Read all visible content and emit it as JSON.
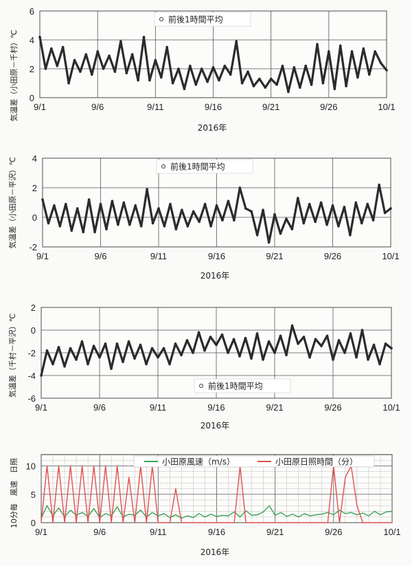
{
  "chart_data": [
    {
      "type": "line",
      "ylabel": "気温差（小田原－千村）℃",
      "xlabel": "2016年",
      "x_tick_labels": [
        "9/1",
        "9/6",
        "9/11",
        "9/16",
        "9/21",
        "9/26",
        "10/1"
      ],
      "y_tick_labels": [
        "0",
        "2",
        "4",
        "6"
      ],
      "ylim": [
        0,
        6
      ],
      "legend": "前後1時間平均",
      "legend_position": "top-center",
      "grid": true,
      "series": [
        {
          "name": "前後1時間平均",
          "color": "#2b2b2b",
          "x_days": [
            0,
            0.5,
            1,
            1.5,
            2,
            2.5,
            3,
            3.5,
            4,
            4.5,
            5,
            5.5,
            6,
            6.5,
            7,
            7.5,
            8,
            8.5,
            9,
            9.5,
            10,
            10.5,
            11,
            11.5,
            12,
            12.5,
            13,
            13.5,
            14,
            14.5,
            15,
            15.5,
            16,
            16.5,
            17,
            17.5,
            18,
            18.5,
            19,
            19.5,
            20,
            20.5,
            21,
            21.5,
            22,
            22.5,
            23,
            23.5,
            24,
            24.5,
            25,
            25.5,
            26,
            26.5,
            27,
            27.5,
            28,
            28.5,
            29,
            29.5,
            30
          ],
          "values": [
            4.2,
            2.0,
            3.4,
            2.2,
            3.5,
            1.0,
            2.6,
            1.8,
            3.0,
            1.6,
            3.2,
            2.0,
            2.9,
            1.8,
            3.9,
            1.7,
            3.0,
            1.2,
            4.2,
            1.2,
            2.6,
            1.4,
            3.5,
            1.0,
            2.0,
            0.6,
            2.2,
            0.9,
            2.0,
            1.1,
            2.1,
            1.2,
            2.2,
            1.6,
            3.9,
            1.0,
            1.8,
            0.8,
            1.3,
            0.7,
            1.3,
            0.9,
            2.2,
            0.4,
            2.1,
            0.7,
            2.2,
            0.9,
            3.7,
            1.0,
            3.2,
            0.6,
            3.6,
            0.8,
            3.2,
            1.4,
            3.4,
            1.6,
            3.2,
            2.4,
            1.9
          ]
        }
      ]
    },
    {
      "type": "line",
      "ylabel": "気温差（小田原－平沢）℃",
      "xlabel": "2016年",
      "x_tick_labels": [
        "9/1",
        "9/6",
        "9/11",
        "9/16",
        "9/21",
        "9/26",
        "10/1"
      ],
      "y_tick_labels": [
        "-2",
        "0",
        "2",
        "4"
      ],
      "ylim": [
        -2,
        4
      ],
      "legend": "前後1時間平均",
      "legend_position": "top-center",
      "grid": true,
      "series": [
        {
          "name": "前後1時間平均",
          "color": "#2b2b2b",
          "x_days": [
            0,
            0.5,
            1,
            1.5,
            2,
            2.5,
            3,
            3.5,
            4,
            4.5,
            5,
            5.5,
            6,
            6.5,
            7,
            7.5,
            8,
            8.5,
            9,
            9.5,
            10,
            10.5,
            11,
            11.5,
            12,
            12.5,
            13,
            13.5,
            14,
            14.5,
            15,
            15.5,
            16,
            16.5,
            17,
            17.5,
            18,
            18.5,
            19,
            19.5,
            20,
            20.5,
            21,
            21.5,
            22,
            22.5,
            23,
            23.5,
            24,
            24.5,
            25,
            25.5,
            26,
            26.5,
            27,
            27.5,
            28,
            28.5,
            29,
            29.5,
            30
          ],
          "values": [
            1.2,
            -0.4,
            0.8,
            -0.6,
            0.9,
            -0.9,
            0.6,
            -1.0,
            1.2,
            -1.0,
            0.9,
            -0.8,
            1.1,
            -0.5,
            1.0,
            -0.5,
            0.8,
            -0.6,
            1.9,
            -0.4,
            0.6,
            -0.6,
            0.9,
            -0.8,
            0.5,
            -0.6,
            0.4,
            -0.3,
            0.9,
            -0.6,
            0.8,
            -0.2,
            1.1,
            -0.2,
            2.0,
            0.6,
            0.4,
            -1.2,
            0.5,
            -1.7,
            0.2,
            -1.1,
            -0.1,
            -0.8,
            1.3,
            -0.4,
            0.9,
            -0.3,
            1.0,
            -0.5,
            0.8,
            -0.6,
            0.7,
            -1.2,
            1.0,
            -0.4,
            0.9,
            -0.2,
            2.2,
            0.3,
            0.6
          ]
        }
      ]
    },
    {
      "type": "line",
      "ylabel": "気温差（千村－平沢）℃",
      "xlabel": "2016年",
      "x_tick_labels": [
        "9/1",
        "9/6",
        "9/11",
        "9/16",
        "9/21",
        "9/26",
        "10/1"
      ],
      "y_tick_labels": [
        "-6",
        "-4",
        "-2",
        "0",
        "2"
      ],
      "ylim": [
        -6,
        2
      ],
      "legend": "前後1時間平均",
      "legend_position": "bottom-center",
      "grid": true,
      "series": [
        {
          "name": "前後1時間平均",
          "color": "#2b2b2b",
          "x_days": [
            0,
            0.5,
            1,
            1.5,
            2,
            2.5,
            3,
            3.5,
            4,
            4.5,
            5,
            5.5,
            6,
            6.5,
            7,
            7.5,
            8,
            8.5,
            9,
            9.5,
            10,
            10.5,
            11,
            11.5,
            12,
            12.5,
            13,
            13.5,
            14,
            14.5,
            15,
            15.5,
            16,
            16.5,
            17,
            17.5,
            18,
            18.5,
            19,
            19.5,
            20,
            20.5,
            21,
            21.5,
            22,
            22.5,
            23,
            23.5,
            24,
            24.5,
            25,
            25.5,
            26,
            26.5,
            27,
            27.5,
            28,
            28.5,
            29,
            29.5,
            30
          ],
          "values": [
            -4.0,
            -1.8,
            -3.0,
            -1.5,
            -3.2,
            -1.6,
            -2.6,
            -1.0,
            -3.0,
            -1.4,
            -2.4,
            -1.2,
            -3.4,
            -1.2,
            -2.8,
            -1.0,
            -2.5,
            -1.3,
            -3.0,
            -1.6,
            -2.4,
            -1.6,
            -3.0,
            -1.2,
            -2.2,
            -0.9,
            -2.0,
            -0.2,
            -1.8,
            -0.6,
            -1.3,
            -0.4,
            -2.0,
            -0.8,
            -2.3,
            -0.7,
            -2.5,
            -0.3,
            -2.6,
            -1.0,
            -2.0,
            -0.5,
            -2.2,
            0.4,
            -1.2,
            -0.6,
            -2.4,
            -0.8,
            -1.4,
            -0.5,
            -2.6,
            -0.9,
            -2.0,
            -0.3,
            -2.4,
            0.0,
            -2.6,
            -1.3,
            -3.0,
            -1.2,
            -1.6
          ]
        }
      ]
    },
    {
      "type": "line",
      "ylabel": "10分毎　風速　日照",
      "xlabel": "2016年",
      "x_tick_labels": [
        "9/1",
        "9/6",
        "9/11",
        "9/16",
        "9/21",
        "9/26",
        "10/1"
      ],
      "y_tick_labels": [
        "0",
        "5",
        "10"
      ],
      "ylim": [
        0,
        12
      ],
      "legend_position": "top-right",
      "grid": true,
      "series": [
        {
          "name": "小田原風速（m/s）",
          "color": "#3aa05a",
          "x_days": [
            0,
            0.5,
            1,
            1.5,
            2,
            2.5,
            3,
            3.5,
            4,
            4.5,
            5,
            5.5,
            6,
            6.5,
            7,
            7.5,
            8,
            8.5,
            9,
            9.5,
            10,
            10.5,
            11,
            11.5,
            12,
            12.5,
            13,
            13.5,
            14,
            14.5,
            15,
            15.5,
            16,
            16.5,
            17,
            17.5,
            18,
            18.5,
            19,
            19.5,
            20,
            20.5,
            21,
            21.5,
            22,
            22.5,
            23,
            23.5,
            24,
            24.5,
            25,
            25.5,
            26,
            26.5,
            27,
            27.5,
            28,
            28.5,
            29,
            29.5,
            30
          ],
          "values": [
            0.8,
            3.0,
            1.2,
            2.6,
            1.0,
            2.2,
            1.3,
            1.8,
            1.1,
            2.5,
            0.9,
            1.6,
            1.2,
            2.8,
            1.0,
            1.5,
            1.3,
            2.2,
            1.0,
            1.8,
            1.2,
            1.6,
            0.9,
            1.4,
            0.8,
            1.2,
            0.9,
            1.6,
            1.0,
            1.5,
            1.1,
            1.3,
            1.2,
            1.9,
            1.0,
            2.1,
            1.3,
            1.4,
            1.9,
            3.0,
            1.3,
            1.8,
            1.1,
            1.5,
            1.0,
            1.6,
            1.2,
            1.4,
            1.5,
            1.8,
            1.4,
            2.2,
            1.6,
            1.8,
            1.4,
            1.7,
            1.2,
            2.0,
            1.4,
            1.9,
            2.0
          ]
        },
        {
          "name": "小田原日照時間（分）",
          "color": "#e05050",
          "x_days": [
            0,
            0.5,
            1,
            1.5,
            2,
            2.5,
            3,
            3.5,
            4,
            4.5,
            5,
            5.5,
            6,
            6.5,
            7,
            7.5,
            8,
            8.5,
            9,
            9.5,
            10,
            10.5,
            11,
            11.5,
            12,
            12.5,
            13,
            13.5,
            14,
            14.5,
            15,
            15.5,
            16,
            16.5,
            17,
            17.5,
            18,
            18.5,
            19,
            19.5,
            20,
            20.5,
            21,
            21.5,
            22,
            22.5,
            23,
            23.5,
            24,
            24.5,
            25,
            25.5,
            26,
            26.5,
            27,
            27.5,
            28,
            28.5,
            29,
            29.5,
            30
          ],
          "values": [
            0,
            10,
            0,
            10,
            0,
            10,
            0,
            10,
            0,
            10,
            0,
            10,
            0,
            10,
            0,
            8,
            0,
            10,
            0,
            10,
            0,
            0,
            0,
            6,
            0,
            0,
            0,
            0,
            0,
            0,
            0,
            0,
            0,
            0,
            10,
            0,
            0,
            0,
            0,
            0,
            0,
            0,
            0,
            0,
            0,
            0,
            0,
            0,
            0,
            0,
            10,
            0,
            8,
            10,
            3,
            0,
            0,
            0,
            0,
            0,
            0
          ]
        }
      ]
    }
  ]
}
